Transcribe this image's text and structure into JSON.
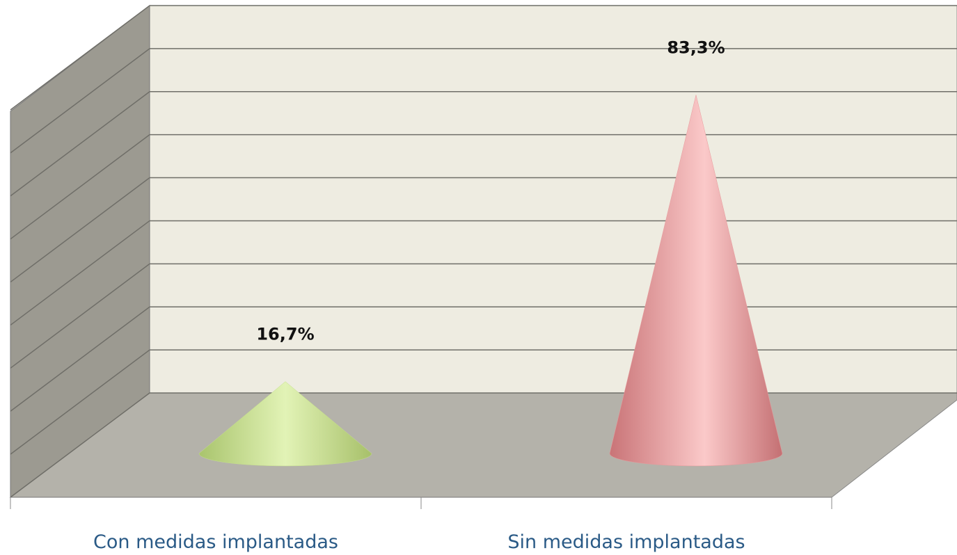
{
  "chart_data": {
    "type": "cone3d",
    "categories": [
      "Con medidas implantadas",
      "Sin medidas implantadas"
    ],
    "series": [
      {
        "values": [
          16.7,
          83.3
        ],
        "value_labels": [
          "16,7%",
          "83,3%"
        ],
        "colors": [
          "#c5df8c",
          "#e89a9c"
        ]
      }
    ],
    "ylim": [
      0,
      90
    ],
    "yticks": [
      0,
      10,
      20,
      30,
      40,
      50,
      60,
      70,
      80,
      90
    ],
    "grid": true
  }
}
